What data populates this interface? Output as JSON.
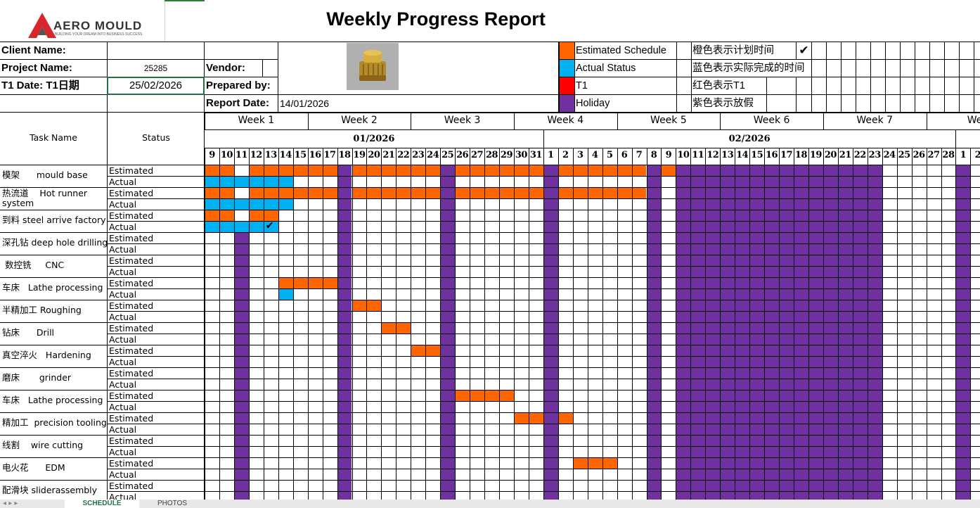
{
  "title": "Weekly Progress Report",
  "logo": {
    "text": "AERO MOULD",
    "tagline": "BUILDING YOUR DREAM INTO BUSINESS SUCCESS"
  },
  "header": {
    "client_label": "Client Name:",
    "project_label": "Project Name:",
    "project_value": "25285",
    "t1_label": "T1 Date:  T1日期",
    "t1_value": "25/02/2026",
    "vendor_label": "Vendor:",
    "prepared_label": "Prepared by:",
    "report_label": "Report Date:",
    "report_value": "14/01/2026"
  },
  "legend": [
    {
      "color": "#ff6600",
      "label": "Estimated Schedule",
      "cn": "橙色表示计划时间"
    },
    {
      "color": "#00b0f0",
      "label": "Actual Status",
      "cn": "蓝色表示实际完成的时间"
    },
    {
      "color": "#ff0000",
      "label": "T1",
      "cn": "红色表示T1"
    },
    {
      "color": "#7030a0",
      "label": "Holiday",
      "cn": "紫色表示放假"
    }
  ],
  "legend_check": "✔",
  "table_headers": {
    "task": "Task Name",
    "status": "Status"
  },
  "weeks": [
    "Week 1",
    "Week 2",
    "Week 3",
    "Week 4",
    "Week 5",
    "Week 6",
    "Week 7",
    "Wee"
  ],
  "months": [
    "01/2026",
    "02/2026"
  ],
  "days": [
    "9",
    "10",
    "11",
    "12",
    "13",
    "14",
    "15",
    "16",
    "17",
    "18",
    "19",
    "20",
    "21",
    "22",
    "23",
    "24",
    "25",
    "26",
    "27",
    "28",
    "29",
    "30",
    "31",
    "1",
    "2",
    "3",
    "4",
    "5",
    "6",
    "7",
    "8",
    "9",
    "10",
    "11",
    "12",
    "13",
    "14",
    "15",
    "16",
    "17",
    "18",
    "19",
    "20",
    "21",
    "22",
    "23",
    "24",
    "25",
    "26",
    "27",
    "28",
    "1",
    "2"
  ],
  "status_labels": {
    "estimated": "Estimated",
    "actual": "Actual"
  },
  "tasks": [
    {
      "name": "模架      mould base",
      "est": [
        [
          0,
          31
        ]
      ],
      "act": [
        [
          0,
          5
        ]
      ]
    },
    {
      "name": "热流道    Hot runner\nsystem",
      "est": [
        [
          0,
          29
        ]
      ],
      "act": [
        [
          0,
          5
        ]
      ]
    },
    {
      "name": "到料 steel arrive factory",
      "est": [
        [
          0,
          4
        ]
      ],
      "act": [
        [
          0,
          4
        ]
      ],
      "check": "✔"
    },
    {
      "name": "深孔钻 deep hole drilling",
      "est": [],
      "act": []
    },
    {
      "name": " 数控铣     CNC",
      "est": [],
      "act": []
    },
    {
      "name": "车床   Lathe processing",
      "est": [
        [
          5,
          8
        ]
      ],
      "act": [
        [
          5,
          5
        ]
      ]
    },
    {
      "name": "半精加工 Roughing",
      "est": [
        [
          9,
          11
        ]
      ],
      "act": []
    },
    {
      "name": "钻床      Drill",
      "est": [
        [
          12,
          13
        ]
      ],
      "act": []
    },
    {
      "name": "真空淬火   Hardening",
      "est": [
        [
          14,
          16
        ]
      ],
      "act": []
    },
    {
      "name": "磨床       grinder",
      "est": [],
      "act": []
    },
    {
      "name": "车床   Lathe processing",
      "est": [
        [
          17,
          20
        ]
      ],
      "act": []
    },
    {
      "name": "精加工  precision tooling",
      "est": [
        [
          21,
          24
        ]
      ],
      "act": []
    },
    {
      "name": "线割    wire cutting",
      "est": [],
      "act": []
    },
    {
      "name": "电火花      EDM",
      "est": [
        [
          25,
          27
        ]
      ],
      "act": []
    },
    {
      "name": "配滑块 sliderassembly",
      "est": [],
      "act": []
    }
  ],
  "holiday_columns": [
    2,
    9,
    16,
    23,
    30
  ],
  "holiday_block": [
    32,
    45
  ],
  "holiday_extra": [
    51
  ],
  "sheet_tabs": [
    "SCHEDULE",
    "PHOTOS"
  ]
}
